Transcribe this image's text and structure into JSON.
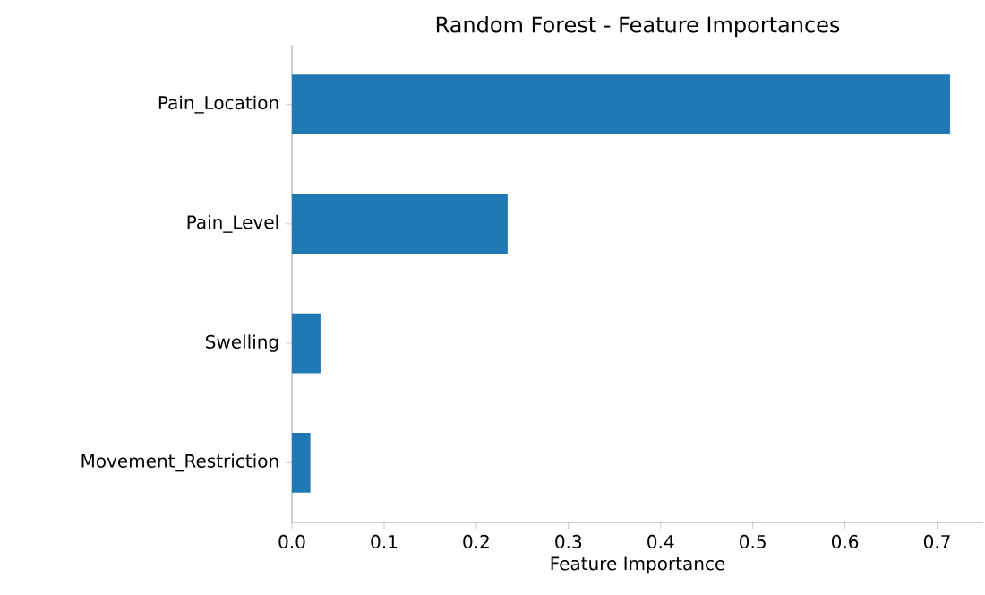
{
  "chart_data": {
    "type": "bar",
    "orientation": "horizontal",
    "title": "Random Forest - Feature Importances",
    "xlabel": "Feature Importance",
    "categories": [
      "Pain_Location",
      "Pain_Level",
      "Swelling",
      "Movement_Restriction"
    ],
    "values": [
      0.714,
      0.234,
      0.031,
      0.02
    ],
    "color": "#1f77b4",
    "xlim": [
      0,
      0.75
    ],
    "xticks": [
      {
        "value": 0,
        "label": "0.0"
      },
      {
        "value": 0.1,
        "label": "0.1"
      },
      {
        "value": 0.2,
        "label": "0.2"
      },
      {
        "value": 0.3,
        "label": "0.3"
      },
      {
        "value": 0.4,
        "label": "0.4"
      },
      {
        "value": 0.5,
        "label": "0.5"
      },
      {
        "value": 0.6,
        "label": "0.6"
      },
      {
        "value": 0.7,
        "label": "0.7"
      }
    ]
  }
}
